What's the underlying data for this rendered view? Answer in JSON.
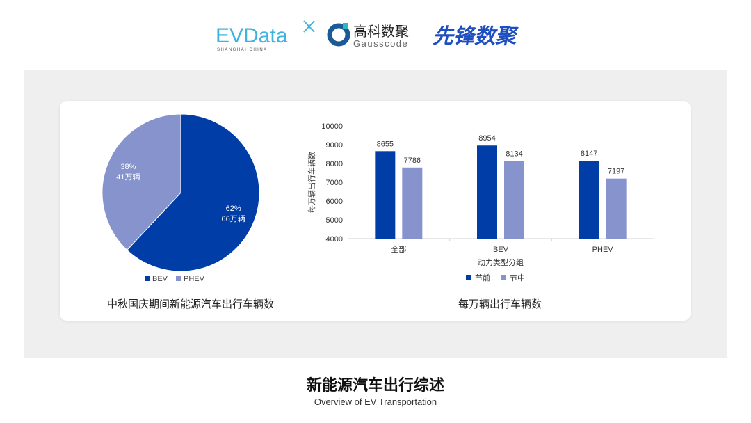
{
  "logos": {
    "evdata": {
      "name": "EVData",
      "sub": "SHANGHAI CHINA"
    },
    "gausscode": {
      "cn": "高科数聚",
      "en": "Gausscode"
    },
    "xianfeng": {
      "cn": "先锋数聚"
    }
  },
  "colors": {
    "primary": "#003da6",
    "secondary": "#8693cc",
    "panel": "#efefef"
  },
  "chart_data": [
    {
      "type": "pie",
      "title": "中秋国庆期间新能源汽车出行车辆数",
      "slices": [
        {
          "name": "BEV",
          "percent": 62,
          "label": "66万辆",
          "pct_label": "62%",
          "color": "#003da6"
        },
        {
          "name": "PHEV",
          "percent": 38,
          "label": "41万辆",
          "pct_label": "38%",
          "color": "#8693cc"
        }
      ],
      "legend": "bottom",
      "legend_entries": [
        "BEV",
        "PHEV"
      ]
    },
    {
      "type": "bar",
      "title": "每万辆出行车辆数",
      "xlabel": "动力类型分组",
      "ylabel": "每万辆出行车辆数",
      "categories": [
        "全部",
        "BEV",
        "PHEV"
      ],
      "series": [
        {
          "name": "节前",
          "values": [
            8655,
            8954,
            8147
          ],
          "color": "#003da6"
        },
        {
          "name": "节中",
          "values": [
            7786,
            8134,
            7197
          ],
          "color": "#8693cc"
        }
      ],
      "ylim": [
        4000,
        10000
      ],
      "yticks": [
        "4000",
        "5000",
        "6000",
        "7000",
        "8000",
        "9000",
        "10000"
      ],
      "grid": false,
      "legend": "bottom"
    }
  ],
  "footer": {
    "title": "新能源汽车出行综述",
    "subtitle": "Overview of EV Transportation"
  }
}
